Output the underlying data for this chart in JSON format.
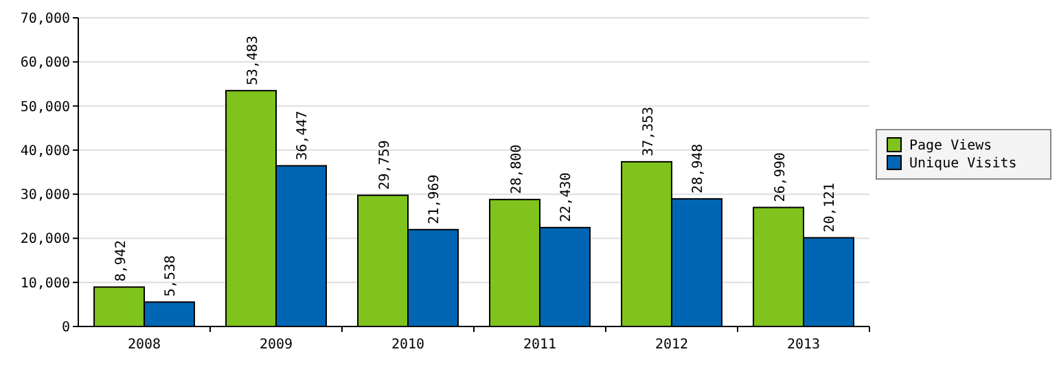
{
  "chart_data": {
    "type": "bar",
    "categories": [
      "2008",
      "2009",
      "2010",
      "2011",
      "2012",
      "2013"
    ],
    "series": [
      {
        "name": "Page Views",
        "color": "#7fc31c",
        "values": [
          8942,
          53483,
          29759,
          28800,
          37353,
          26990
        ],
        "value_labels": [
          "8,942",
          "53,483",
          "29,759",
          "28,800",
          "37,353",
          "26,990"
        ]
      },
      {
        "name": "Unique Visits",
        "color": "#0066b3",
        "values": [
          5538,
          36447,
          21969,
          22430,
          28948,
          20121
        ],
        "value_labels": [
          "5,538",
          "36,447",
          "21,969",
          "22,430",
          "28,948",
          "20,121"
        ]
      }
    ],
    "ylim": [
      0,
      70000
    ],
    "yticks": [
      {
        "value": 0,
        "label": "0"
      },
      {
        "value": 10000,
        "label": "10,000"
      },
      {
        "value": 20000,
        "label": "20,000"
      },
      {
        "value": 30000,
        "label": "30,000"
      },
      {
        "value": 40000,
        "label": "40,000"
      },
      {
        "value": 50000,
        "label": "50,000"
      },
      {
        "value": 60000,
        "label": "60,000"
      },
      {
        "value": 70000,
        "label": "70,000"
      }
    ],
    "grid": "y",
    "legend": "right"
  }
}
